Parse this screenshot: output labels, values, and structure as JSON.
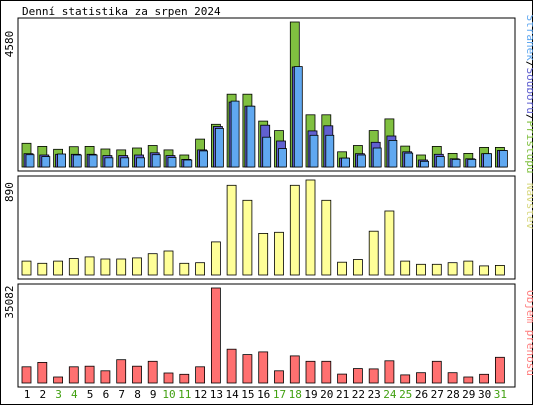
{
  "title": "Denní statistika za srpen 2024",
  "colors": {
    "hits": "#80c040",
    "files": "#6060d0",
    "pages": "#60a8f0",
    "visits": "#ffff98",
    "volume": "#ff7070",
    "day_normal": "#000000",
    "day_weekend": "#40a010",
    "border": "#000000"
  },
  "chart_data": [
    {
      "type": "bar",
      "panel": "top",
      "ymax_label": "4580",
      "legend": {
        "pages": "Stránek",
        "files": "Souborů",
        "hits": "Přístupů",
        "sep": "/"
      },
      "categories": [
        "1",
        "2",
        "3",
        "4",
        "5",
        "6",
        "7",
        "8",
        "9",
        "10",
        "11",
        "12",
        "13",
        "14",
        "15",
        "16",
        "17",
        "18",
        "19",
        "20",
        "21",
        "22",
        "23",
        "24",
        "25",
        "26",
        "27",
        "28",
        "29",
        "30",
        "31"
      ],
      "ymax": 4580,
      "series": [
        {
          "name": "Přístupů",
          "values": [
            750,
            650,
            560,
            640,
            650,
            570,
            540,
            600,
            680,
            540,
            380,
            880,
            1350,
            2300,
            2300,
            1450,
            1150,
            4580,
            1650,
            1650,
            480,
            680,
            1150,
            1520,
            660,
            380,
            650,
            430,
            430,
            620,
            620
          ]
        },
        {
          "name": "Souborů",
          "values": [
            420,
            380,
            400,
            400,
            400,
            360,
            360,
            380,
            450,
            360,
            240,
            540,
            1280,
            2050,
            1920,
            1320,
            820,
            3160,
            1140,
            1300,
            280,
            420,
            780,
            980,
            480,
            220,
            400,
            260,
            260,
            420,
            520
          ]
        },
        {
          "name": "Stránek",
          "values": [
            390,
            330,
            410,
            380,
            380,
            290,
            290,
            290,
            390,
            300,
            220,
            510,
            1220,
            2080,
            1920,
            940,
            580,
            3170,
            1000,
            1000,
            280,
            380,
            600,
            840,
            440,
            180,
            330,
            240,
            240,
            420,
            520
          ]
        }
      ]
    },
    {
      "type": "bar",
      "panel": "middle",
      "ymax_label": "890",
      "legend": {
        "visits": "Návštěv"
      },
      "categories": [
        "1",
        "2",
        "3",
        "4",
        "5",
        "6",
        "7",
        "8",
        "9",
        "10",
        "11",
        "12",
        "13",
        "14",
        "15",
        "16",
        "17",
        "18",
        "19",
        "20",
        "21",
        "22",
        "23",
        "24",
        "25",
        "26",
        "27",
        "28",
        "29",
        "30",
        "31"
      ],
      "ymax": 890,
      "series": [
        {
          "name": "Návštěv",
          "values": [
            130,
            110,
            130,
            155,
            170,
            150,
            150,
            160,
            200,
            225,
            110,
            115,
            310,
            840,
            700,
            390,
            400,
            840,
            890,
            700,
            120,
            145,
            410,
            600,
            130,
            100,
            100,
            115,
            130,
            85,
            90
          ]
        }
      ]
    },
    {
      "type": "bar",
      "panel": "bottom",
      "ymax_label": "35082",
      "legend": {
        "volume": "Objem přenosu"
      },
      "categories": [
        "1",
        "2",
        "3",
        "4",
        "5",
        "6",
        "7",
        "8",
        "9",
        "10",
        "11",
        "12",
        "13",
        "14",
        "15",
        "16",
        "17",
        "18",
        "19",
        "20",
        "21",
        "22",
        "23",
        "24",
        "25",
        "26",
        "27",
        "28",
        "29",
        "30",
        "31"
      ],
      "ymax": 35082,
      "series": [
        {
          "name": "Objem přenosu",
          "values": [
            6000,
            7600,
            2200,
            6000,
            6200,
            4500,
            8600,
            6200,
            8000,
            3700,
            3200,
            6000,
            35082,
            12500,
            10500,
            11500,
            4500,
            10000,
            8000,
            8000,
            3300,
            5300,
            5200,
            8200,
            3000,
            3800,
            8000,
            3800,
            2200,
            3200,
            9500
          ]
        }
      ]
    }
  ],
  "x_labels": {
    "weekend_days": [
      "3",
      "4",
      "10",
      "11",
      "17",
      "18",
      "24",
      "25",
      "31"
    ]
  }
}
